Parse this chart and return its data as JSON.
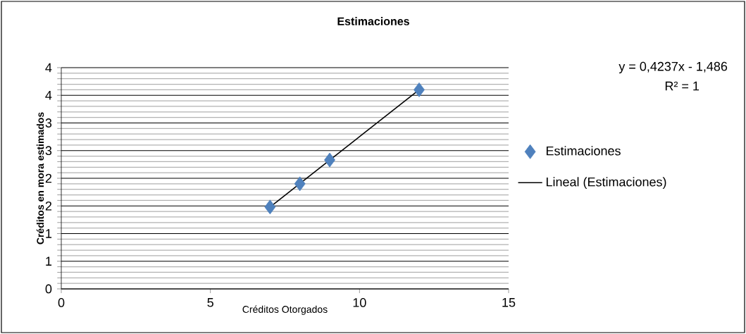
{
  "chart_data": {
    "type": "scatter",
    "title": "Estimaciones",
    "xlabel": "Créditos Otorgados",
    "ylabel": "Créditos en mora estimados",
    "xlim": [
      0,
      15
    ],
    "xticks": [
      0,
      5,
      10,
      15
    ],
    "ylim": [
      0,
      4
    ],
    "yticks": [
      0,
      {
        "value": 0.5,
        "label": "1"
      },
      1,
      {
        "value": 1.5,
        "label": "2"
      },
      2,
      {
        "value": 2.5,
        "label": "3"
      },
      3,
      {
        "value": 3.5,
        "label": "4"
      },
      4
    ],
    "grid": "y",
    "legend": "right",
    "marker": "diamond",
    "annotations": [
      "y = 0,4237x - 1,486",
      "R² = 1"
    ],
    "series": [
      {
        "name": "Estimaciones",
        "color": "#4f81bd",
        "x": [
          7,
          8,
          9,
          12
        ],
        "values": [
          1.48,
          1.9,
          2.33,
          3.6
        ]
      },
      {
        "name": "Lineal (Estimaciones)",
        "type": "line",
        "color": "#000000",
        "x": [
          7,
          12
        ],
        "values": [
          1.48,
          3.6
        ]
      }
    ]
  }
}
